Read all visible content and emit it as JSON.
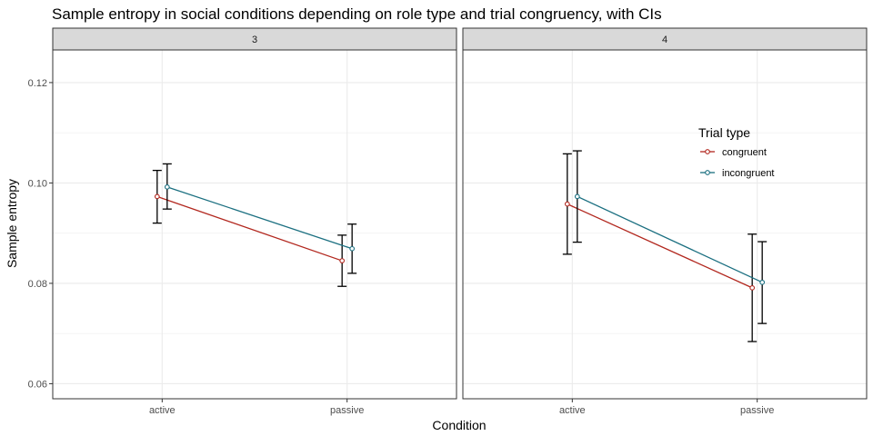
{
  "chart_data": {
    "type": "line",
    "title": "Sample entropy in social conditions depending on role type and trial congruency, with CIs",
    "xlabel": "Condition",
    "ylabel": "Sample entropy",
    "categories": [
      "active",
      "passive"
    ],
    "ylim": [
      0.057,
      0.1265
    ],
    "yticks": [
      0.06,
      0.08,
      0.1,
      0.12
    ],
    "ytick_labels": [
      "0.06",
      "0.08",
      "0.10",
      "0.12"
    ],
    "grid": true,
    "legend": {
      "title": "Trial type",
      "placement": "top-right of right panel",
      "entries": [
        "congruent",
        "incongruent"
      ]
    },
    "colors": {
      "congruent": "#b2271e",
      "incongruent": "#1a6f80"
    },
    "panels": [
      {
        "facet": "3",
        "series": [
          {
            "name": "congruent",
            "values": [
              0.0973,
              0.0845
            ],
            "lower": [
              0.092,
              0.0794
            ],
            "upper": [
              0.1025,
              0.0896
            ]
          },
          {
            "name": "incongruent",
            "values": [
              0.0992,
              0.0869
            ],
            "lower": [
              0.0948,
              0.082
            ],
            "upper": [
              0.1038,
              0.0918
            ]
          }
        ]
      },
      {
        "facet": "4",
        "series": [
          {
            "name": "congruent",
            "values": [
              0.0958,
              0.0791
            ],
            "lower": [
              0.0858,
              0.0684
            ],
            "upper": [
              0.1058,
              0.0898
            ]
          },
          {
            "name": "incongruent",
            "values": [
              0.0973,
              0.0802
            ],
            "lower": [
              0.0882,
              0.072
            ],
            "upper": [
              0.1064,
              0.0883
            ]
          }
        ]
      }
    ]
  }
}
